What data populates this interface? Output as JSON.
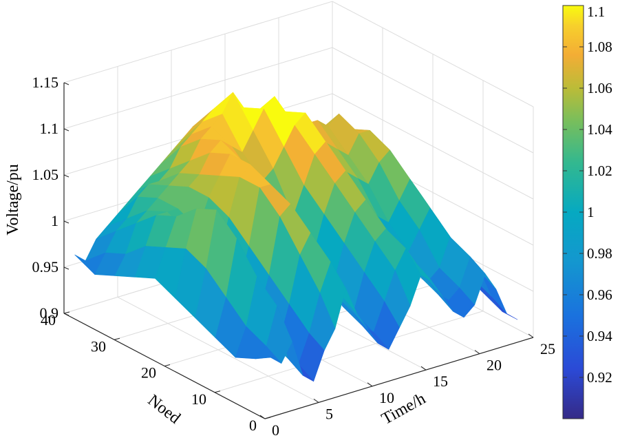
{
  "chart_data": {
    "type": "surface",
    "title": "",
    "xlabel": "Time/h",
    "ylabel": "Noed",
    "zlabel": "Voltage/pu",
    "xlim": [
      0,
      25
    ],
    "ylim": [
      0,
      40
    ],
    "zlim": [
      0.9,
      1.15
    ],
    "x_ticks": [
      "0",
      "5",
      "10",
      "15",
      "20",
      "25"
    ],
    "y_ticks": [
      "0",
      "10",
      "20",
      "30",
      "40"
    ],
    "z_ticks": [
      "0.9",
      "0.95",
      "1",
      "1.05",
      "1.1",
      "1.15"
    ],
    "grid": true,
    "colorbar": {
      "colormap": "parula",
      "range": [
        0.9,
        1.1
      ],
      "ticks": [
        "0.92",
        "0.94",
        "0.96",
        "0.98",
        "1",
        "1.02",
        "1.04",
        "1.06",
        "1.08",
        "1.1"
      ]
    },
    "time_points": [
      1,
      2,
      3,
      4,
      5,
      6,
      7,
      8,
      9,
      10,
      11,
      12,
      13,
      14,
      15,
      16,
      17,
      18,
      19,
      20,
      21,
      22,
      23,
      24
    ],
    "series": [
      {
        "node": 1,
        "values": [
          0.96,
          0.95,
          0.97,
          0.93,
          0.92,
          0.95,
          0.97,
          1.01,
          0.98,
          0.96,
          0.94,
          0.93,
          0.95,
          0.97,
          1.0,
          0.99,
          0.97,
          0.95,
          0.94,
          0.95,
          0.98,
          0.96,
          0.93,
          0.92
        ]
      },
      {
        "node": 4,
        "values": [
          0.95,
          0.96,
          1.0,
          0.94,
          0.93,
          0.96,
          1.0,
          1.03,
          0.99,
          0.97,
          0.95,
          0.94,
          0.97,
          1.0,
          1.02,
          1.0,
          0.98,
          0.96,
          0.95,
          0.96,
          0.99,
          0.97,
          0.94,
          0.92
        ]
      },
      {
        "node": 8,
        "values": [
          0.94,
          0.97,
          1.02,
          0.95,
          0.94,
          0.98,
          1.03,
          1.05,
          1.0,
          0.98,
          0.96,
          0.95,
          0.99,
          1.02,
          1.03,
          1.01,
          0.99,
          0.97,
          0.96,
          0.97,
          1.0,
          0.98,
          0.95,
          0.93
        ]
      },
      {
        "node": 12,
        "values": [
          0.95,
          0.99,
          1.05,
          0.97,
          0.96,
          1.0,
          1.06,
          1.07,
          1.02,
          1.0,
          0.98,
          0.97,
          1.01,
          1.04,
          1.05,
          1.03,
          1.01,
          0.99,
          0.98,
          1.0,
          1.02,
          1.0,
          0.96,
          0.94
        ]
      },
      {
        "node": 16,
        "values": [
          0.96,
          1.01,
          1.07,
          0.99,
          0.98,
          1.02,
          1.08,
          1.08,
          1.04,
          1.02,
          1.0,
          0.99,
          1.03,
          1.06,
          1.07,
          1.05,
          1.03,
          1.01,
          1.0,
          1.02,
          1.04,
          1.02,
          0.97,
          0.95
        ]
      },
      {
        "node": 20,
        "values": [
          0.97,
          1.02,
          1.06,
          1.01,
          1.0,
          1.04,
          1.08,
          1.09,
          1.06,
          1.04,
          1.02,
          1.02,
          1.05,
          1.08,
          1.09,
          1.07,
          1.05,
          1.04,
          1.03,
          1.05,
          1.06,
          1.03,
          0.98,
          0.96
        ]
      },
      {
        "node": 24,
        "values": [
          0.98,
          1.01,
          1.04,
          1.02,
          1.02,
          1.05,
          1.07,
          1.09,
          1.08,
          1.06,
          1.05,
          1.06,
          1.08,
          1.1,
          1.11,
          1.09,
          1.07,
          1.06,
          1.05,
          1.07,
          1.07,
          1.04,
          0.99,
          0.97
        ]
      },
      {
        "node": 28,
        "values": [
          0.97,
          1.0,
          1.03,
          1.03,
          1.03,
          1.05,
          1.06,
          1.08,
          1.09,
          1.08,
          1.07,
          1.09,
          1.11,
          1.12,
          1.1,
          1.09,
          1.08,
          1.08,
          1.07,
          1.08,
          1.06,
          1.03,
          0.99,
          0.97
        ]
      },
      {
        "node": 32,
        "values": [
          0.96,
          0.98,
          1.01,
          1.02,
          1.03,
          1.04,
          1.05,
          1.06,
          1.08,
          1.09,
          1.1,
          1.12,
          1.1,
          1.09,
          1.08,
          1.07,
          1.07,
          1.06,
          1.06,
          1.05,
          1.03,
          1.01,
          0.98,
          0.96
        ]
      },
      {
        "node": 36,
        "values": [
          0.95,
          0.97,
          0.99,
          1.0,
          1.02,
          1.03,
          1.03,
          1.04,
          1.06,
          1.07,
          1.08,
          1.09,
          1.07,
          1.06,
          1.06,
          1.05,
          1.05,
          1.04,
          1.04,
          1.03,
          1.01,
          0.99,
          0.97,
          0.95
        ]
      },
      {
        "node": 40,
        "values": [
          0.96,
          0.95,
          0.97,
          0.98,
          0.99,
          1.0,
          1.01,
          1.02,
          1.03,
          1.04,
          1.05,
          1.06,
          1.05,
          1.04,
          1.03,
          1.03,
          1.02,
          1.02,
          1.01,
          1.0,
          0.99,
          0.97,
          0.96,
          0.95
        ]
      }
    ]
  }
}
